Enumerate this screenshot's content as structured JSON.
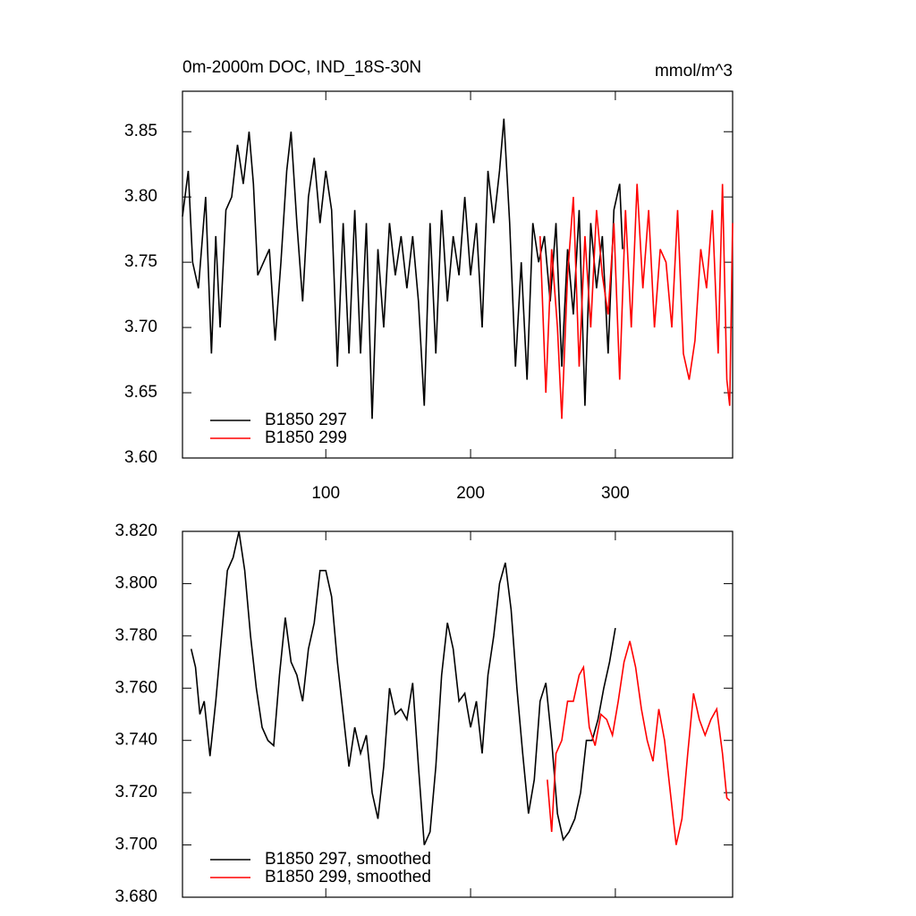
{
  "chart_data": [
    {
      "type": "line",
      "title": "0m-2000m DOC, IND_18S-30N",
      "units": "mmol/m^3",
      "xlim": [
        1,
        381
      ],
      "xticks": [
        100,
        200,
        300
      ],
      "xtick_labels": true,
      "ylim": [
        3.6,
        3.881
      ],
      "yticks": [
        {
          "value": 3.6,
          "label": "3.60"
        },
        {
          "value": 3.65,
          "label": "3.65"
        },
        {
          "value": 3.7,
          "label": "3.70"
        },
        {
          "value": 3.75,
          "label": "3.75"
        },
        {
          "value": 3.8,
          "label": "3.80"
        },
        {
          "value": 3.85,
          "label": "3.85"
        }
      ],
      "legend": "lower left",
      "series": [
        {
          "name": "B1850 297",
          "color": "#000000",
          "x": [
            1,
            5,
            8,
            12,
            17,
            21,
            24,
            27,
            31,
            35,
            39,
            43,
            47,
            50,
            53,
            57,
            61,
            65,
            69,
            73,
            76,
            80,
            84,
            88,
            92,
            96,
            100,
            104,
            108,
            112,
            116,
            120,
            124,
            128,
            132,
            136,
            140,
            144,
            148,
            152,
            156,
            160,
            164,
            168,
            172,
            176,
            180,
            184,
            188,
            192,
            196,
            200,
            204,
            208,
            212,
            216,
            220,
            223,
            227,
            231,
            235,
            239,
            243,
            247,
            251,
            255,
            259,
            263,
            267,
            271,
            275,
            279,
            283,
            287,
            291,
            295,
            299,
            303,
            305
          ],
          "values": [
            3.785,
            3.82,
            3.75,
            3.73,
            3.8,
            3.68,
            3.77,
            3.7,
            3.79,
            3.8,
            3.84,
            3.81,
            3.85,
            3.81,
            3.74,
            3.75,
            3.76,
            3.69,
            3.75,
            3.82,
            3.85,
            3.78,
            3.72,
            3.8,
            3.83,
            3.78,
            3.82,
            3.79,
            3.67,
            3.78,
            3.68,
            3.79,
            3.68,
            3.78,
            3.63,
            3.76,
            3.7,
            3.78,
            3.74,
            3.77,
            3.73,
            3.77,
            3.72,
            3.64,
            3.78,
            3.68,
            3.79,
            3.72,
            3.77,
            3.74,
            3.8,
            3.74,
            3.78,
            3.7,
            3.82,
            3.78,
            3.82,
            3.86,
            3.78,
            3.67,
            3.75,
            3.66,
            3.78,
            3.75,
            3.77,
            3.72,
            3.78,
            3.67,
            3.76,
            3.71,
            3.79,
            3.64,
            3.78,
            3.73,
            3.77,
            3.68,
            3.79,
            3.81,
            3.76
          ]
        },
        {
          "name": "B1850 299",
          "color": "#ff0000",
          "x": [
            248,
            252,
            256,
            260,
            263,
            267,
            271,
            275,
            279,
            283,
            287,
            291,
            295,
            299,
            303,
            307,
            311,
            315,
            319,
            323,
            327,
            331,
            335,
            339,
            343,
            347,
            351,
            355,
            359,
            363,
            367,
            371,
            374,
            377,
            379,
            381
          ],
          "values": [
            3.77,
            3.65,
            3.76,
            3.7,
            3.63,
            3.74,
            3.8,
            3.67,
            3.77,
            3.7,
            3.79,
            3.74,
            3.71,
            3.78,
            3.66,
            3.79,
            3.7,
            3.81,
            3.73,
            3.79,
            3.7,
            3.76,
            3.75,
            3.7,
            3.79,
            3.68,
            3.66,
            3.69,
            3.76,
            3.73,
            3.79,
            3.68,
            3.81,
            3.66,
            3.64,
            3.78
          ]
        }
      ]
    },
    {
      "type": "line",
      "xlim": [
        1,
        381
      ],
      "xticks": [
        100,
        200,
        300
      ],
      "xtick_labels": false,
      "ylim": [
        3.68,
        3.82
      ],
      "yticks": [
        {
          "value": 3.68,
          "label": "3.680"
        },
        {
          "value": 3.7,
          "label": "3.700"
        },
        {
          "value": 3.72,
          "label": "3.720"
        },
        {
          "value": 3.74,
          "label": "3.740"
        },
        {
          "value": 3.76,
          "label": "3.760"
        },
        {
          "value": 3.78,
          "label": "3.780"
        },
        {
          "value": 3.8,
          "label": "3.800"
        },
        {
          "value": 3.82,
          "label": "3.820"
        }
      ],
      "legend": "lower left",
      "series": [
        {
          "name": "B1850 297, smoothed",
          "color": "#000000",
          "x": [
            7,
            10,
            13,
            16,
            20,
            24,
            28,
            32,
            36,
            40,
            44,
            48,
            52,
            56,
            60,
            64,
            68,
            72,
            76,
            80,
            84,
            88,
            92,
            96,
            100,
            104,
            108,
            112,
            116,
            120,
            124,
            128,
            132,
            136,
            140,
            144,
            148,
            152,
            156,
            160,
            164,
            168,
            172,
            176,
            180,
            184,
            188,
            192,
            196,
            200,
            204,
            208,
            212,
            216,
            220,
            224,
            228,
            232,
            236,
            240,
            244,
            248,
            252,
            256,
            260,
            264,
            268,
            272,
            276,
            280,
            284,
            288,
            292,
            296,
            300
          ],
          "values": [
            3.775,
            3.768,
            3.75,
            3.755,
            3.734,
            3.755,
            3.78,
            3.805,
            3.81,
            3.82,
            3.805,
            3.78,
            3.76,
            3.745,
            3.74,
            3.738,
            3.765,
            3.787,
            3.77,
            3.765,
            3.755,
            3.775,
            3.785,
            3.805,
            3.805,
            3.795,
            3.77,
            3.75,
            3.73,
            3.745,
            3.735,
            3.742,
            3.72,
            3.71,
            3.73,
            3.76,
            3.75,
            3.752,
            3.748,
            3.762,
            3.73,
            3.7,
            3.705,
            3.73,
            3.765,
            3.785,
            3.775,
            3.755,
            3.758,
            3.745,
            3.755,
            3.735,
            3.765,
            3.78,
            3.8,
            3.808,
            3.79,
            3.76,
            3.735,
            3.712,
            3.725,
            3.755,
            3.762,
            3.74,
            3.712,
            3.702,
            3.705,
            3.71,
            3.72,
            3.74,
            3.74,
            3.748,
            3.76,
            3.77,
            3.783
          ]
        },
        {
          "name": "B1850 299, smoothed",
          "color": "#ff0000",
          "x": [
            253,
            256,
            259,
            263,
            267,
            271,
            275,
            278,
            282,
            286,
            290,
            294,
            298,
            302,
            306,
            310,
            314,
            318,
            322,
            326,
            330,
            334,
            338,
            342,
            346,
            350,
            354,
            358,
            362,
            366,
            370,
            374,
            377,
            379
          ],
          "values": [
            3.725,
            3.705,
            3.735,
            3.74,
            3.755,
            3.755,
            3.765,
            3.768,
            3.745,
            3.738,
            3.75,
            3.748,
            3.742,
            3.755,
            3.77,
            3.778,
            3.768,
            3.752,
            3.74,
            3.732,
            3.752,
            3.74,
            3.72,
            3.7,
            3.71,
            3.735,
            3.758,
            3.748,
            3.742,
            3.748,
            3.752,
            3.735,
            3.718,
            3.717
          ]
        }
      ]
    }
  ]
}
